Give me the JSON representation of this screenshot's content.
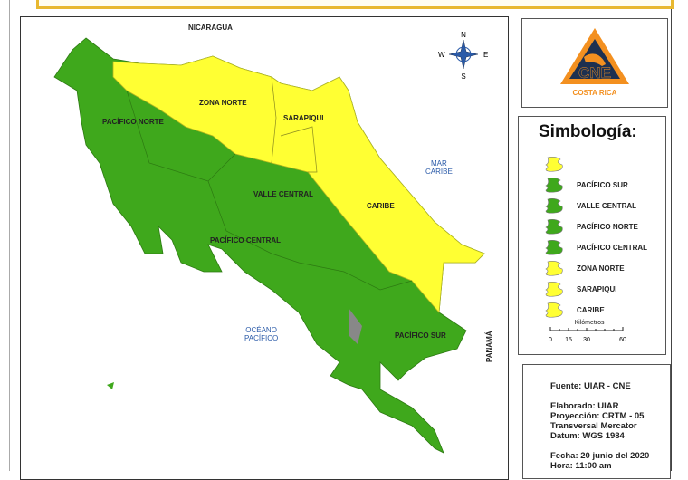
{
  "map": {
    "labels": {
      "nicaragua": "NICARAGUA",
      "panama": "PANAMÁ",
      "mar_caribe": "MAR\nCARIBE",
      "oceano": "OCÉANO\nPACÍFICO",
      "pacifico_norte": "PACÍFICO NORTE",
      "zona_norte": "ZONA NORTE",
      "sarapiqui": "SARAPIQUI",
      "valle_central": "VALLE CENTRAL",
      "caribe": "CARIBE",
      "pacifico_central": "PACÍFICO CENTRAL",
      "pacifico_sur": "PACÍFICO SUR"
    },
    "compass": {
      "n": "N",
      "s": "S",
      "e": "E",
      "w": "W"
    },
    "colors": {
      "alert_yellow": "#ffff33",
      "alert_green": "#3fa81c",
      "sea": "#2a5aa8"
    }
  },
  "logo": {
    "name": "CNE",
    "subtitle": "COSTA RICA",
    "colors": {
      "orange": "#f39020",
      "navy": "#1d3050"
    }
  },
  "legend": {
    "title": "Simbología:",
    "items": [
      {
        "label": "",
        "color": "#ffff33"
      },
      {
        "label": "PACÍFICO SUR",
        "color": "#3fa81c"
      },
      {
        "label": "VALLE CENTRAL",
        "color": "#3fa81c"
      },
      {
        "label": "PACÍFICO NORTE",
        "color": "#3fa81c"
      },
      {
        "label": "PACÍFICO CENTRAL",
        "color": "#3fa81c"
      },
      {
        "label": "ZONA NORTE",
        "color": "#ffff33"
      },
      {
        "label": "SARAPIQUI",
        "color": "#ffff33"
      },
      {
        "label": "CARIBE",
        "color": "#ffff33"
      }
    ],
    "scale": {
      "unit": "Kilómetros",
      "ticks": [
        "0",
        "15",
        "30",
        "60"
      ]
    }
  },
  "info": {
    "fuente": "Fuente: UIAR - CNE",
    "elaborado": "Elaborado: UIAR",
    "proyeccion": "Proyección: CRTM - 05",
    "transversal": "Transversal Mercator",
    "datum": "Datum: WGS 1984",
    "fecha": "Fecha: 20 junio del 2020",
    "hora": "Hora: 11:00 am"
  }
}
